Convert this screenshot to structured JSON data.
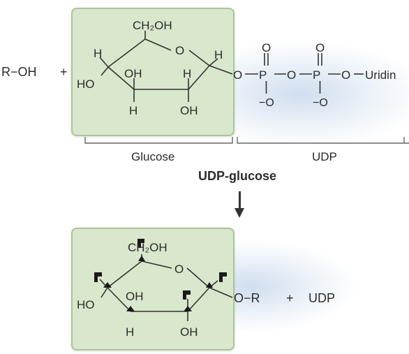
{
  "reactants": {
    "alcohol": "R−OH",
    "plus": "+"
  },
  "glucose_ring_top": {
    "ch2oh": "CH₂OH",
    "ring_o": "O",
    "h_left": "H",
    "h_right": "H",
    "ho_c4": "HO",
    "oh_c3": "OH",
    "h_c2_top": "H",
    "h_c3_bottom": "H",
    "oh_c2": "OH"
  },
  "phosphate_chain": {
    "o1": "O",
    "p1": "P",
    "o2": "O",
    "p2": "P",
    "o3": "O",
    "dash": "−",
    "uridine": "Uridin",
    "dbl_o": "O",
    "neg_o": "−O"
  },
  "brackets": {
    "glucose": "Glucose",
    "udp": "UDP"
  },
  "title": "UDP-glucose",
  "product": {
    "ch2oh": "CH₂OH",
    "ring_o": "O",
    "ho_c4": "HO",
    "oh_c3": "OH",
    "h_c3_bottom": "H",
    "oh_c2": "OH",
    "or_group": "O−R",
    "plus": "+",
    "udp": "UDP"
  }
}
